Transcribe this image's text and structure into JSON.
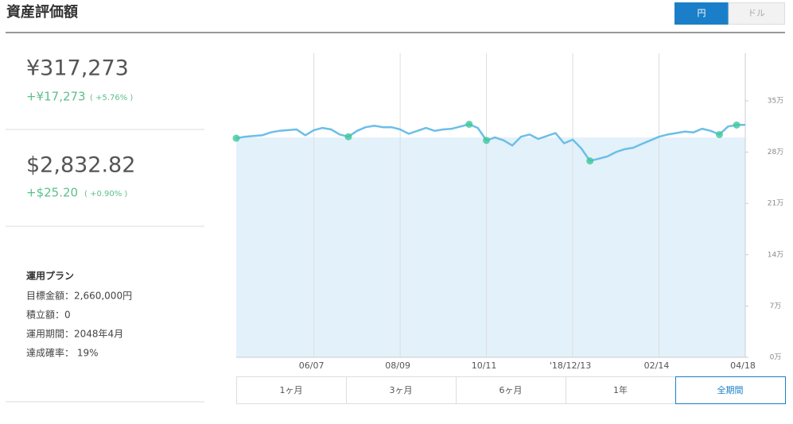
{
  "header": {
    "title": "資産評価額",
    "currency_toggle": [
      "円",
      "ドル"
    ],
    "selected_currency": 0
  },
  "yen_summary": {
    "value": "¥317,273",
    "change": "+¥17,273",
    "change_pct": "( +5.76% )"
  },
  "usd_summary": {
    "value": "$2,832.82",
    "change": "+$25.20",
    "change_pct": "( +0.90% )"
  },
  "plan": {
    "title": "運用プラン",
    "rows": [
      "目標金額：2,660,000円",
      "積立額：0",
      "運用期間：2048年4月",
      "達成確率： 19%"
    ]
  },
  "periods": {
    "buttons": [
      "1ヶ月",
      "3ヶ月",
      "6ヶ月",
      "1年",
      "全期間"
    ],
    "selected": 4
  },
  "chart_data": {
    "type": "line",
    "categories": [
      null,
      null,
      null,
      null,
      null,
      null,
      null,
      null,
      null,
      "06/07",
      null,
      null,
      null,
      null,
      null,
      null,
      null,
      null,
      null,
      "08/09",
      null,
      null,
      null,
      null,
      null,
      null,
      null,
      null,
      null,
      "10/11",
      null,
      null,
      null,
      null,
      null,
      null,
      null,
      null,
      null,
      "'18/12/13",
      null,
      null,
      null,
      null,
      null,
      null,
      null,
      null,
      null,
      "02/14",
      null,
      null,
      null,
      null,
      null,
      null,
      null,
      null,
      null,
      "04/18"
    ],
    "series": [
      {
        "color": "#6bbfe8",
        "values": [
          299000,
          301000,
          302000,
          303000,
          307000,
          309000,
          310000,
          311000,
          303000,
          310000,
          313000,
          311000,
          304000,
          301000,
          309000,
          314000,
          316000,
          314000,
          314000,
          311000,
          305000,
          309000,
          313000,
          309000,
          311000,
          312000,
          315000,
          318000,
          313000,
          296000,
          300000,
          296000,
          289000,
          301000,
          304000,
          298000,
          302000,
          306000,
          292000,
          297000,
          285000,
          268000,
          271000,
          274000,
          280000,
          284000,
          286000,
          291000,
          296000,
          301000,
          304000,
          306000,
          308000,
          307000,
          312000,
          309000,
          304000,
          315000,
          317000,
          317273
        ]
      },
      {
        "color": "#3ec89a",
        "style": "points",
        "values": [
          299000,
          null,
          null,
          null,
          null,
          null,
          null,
          null,
          null,
          null,
          null,
          null,
          null,
          301000,
          null,
          null,
          null,
          null,
          null,
          null,
          null,
          null,
          null,
          null,
          null,
          null,
          null,
          318000,
          null,
          296000,
          null,
          null,
          null,
          null,
          null,
          null,
          null,
          null,
          null,
          null,
          null,
          268000,
          null,
          null,
          null,
          null,
          null,
          null,
          null,
          null,
          null,
          null,
          null,
          null,
          null,
          null,
          304000,
          null,
          317000,
          null
        ]
      }
    ],
    "reference_value": 300000,
    "reference_color": "#e3f1fa",
    "ylim": [
      0,
      415000
    ],
    "yticks": [
      {
        "value": 0,
        "label": "0万"
      },
      {
        "value": 70000,
        "label": "7万"
      },
      {
        "value": 140000,
        "label": "14万"
      },
      {
        "value": 210000,
        "label": "21万"
      },
      {
        "value": 280000,
        "label": "28万"
      },
      {
        "value": 350000,
        "label": "35万"
      }
    ],
    "grid": true
  }
}
